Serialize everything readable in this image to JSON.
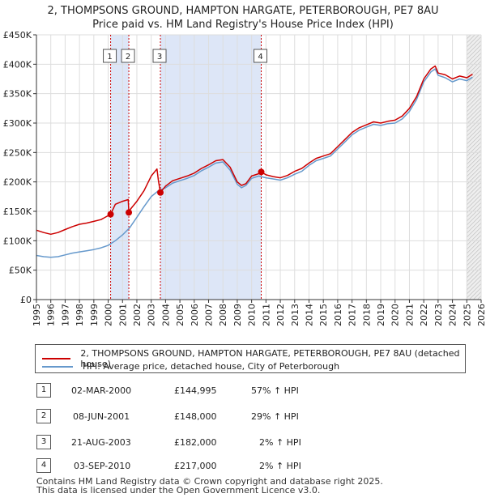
{
  "title": {
    "line1": "2, THOMPSONS GROUND, HAMPTON HARGATE, PETERBOROUGH, PE7 8AU",
    "line2": "Price paid vs. HM Land Registry's House Price Index (HPI)"
  },
  "colors": {
    "price": "#cc0000",
    "hpi": "#6699cc",
    "shade": "#dde6f7",
    "grid": "#dddddd",
    "marker_line": "#cc0000"
  },
  "legend": {
    "price_label": "2, THOMPSONS GROUND, HAMPTON HARGATE, PETERBOROUGH, PE7 8AU (detached house)",
    "hpi_label": "HPI: Average price, detached house, City of Peterborough"
  },
  "transactions": [
    {
      "num": "1",
      "date": "02-MAR-2000",
      "price": "£144,995",
      "pct": "57% ↑ HPI",
      "year": 2000.17,
      "value": 144995
    },
    {
      "num": "2",
      "date": "08-JUN-2001",
      "price": "£148,000",
      "pct": "29% ↑ HPI",
      "year": 2001.44,
      "value": 148000
    },
    {
      "num": "3",
      "date": "21-AUG-2003",
      "price": "£182,000",
      "pct": "2% ↑ HPI",
      "year": 2003.64,
      "value": 182000
    },
    {
      "num": "4",
      "date": "03-SEP-2010",
      "price": "£217,000",
      "pct": "2% ↑ HPI",
      "year": 2010.67,
      "value": 217000
    }
  ],
  "footer": {
    "line1": "Contains HM Land Registry data © Crown copyright and database right 2025.",
    "line2": "This data is licensed under the Open Government Licence v3.0."
  },
  "chart_data": {
    "type": "line",
    "title": "2, THOMPSONS GROUND, HAMPTON HARGATE, PETERBOROUGH, PE7 8AU",
    "subtitle": "Price paid vs. HM Land Registry's House Price Index (HPI)",
    "xlabel": "",
    "ylabel": "",
    "xlim": [
      1995,
      2026
    ],
    "ylim": [
      0,
      450000
    ],
    "x_ticks": [
      "1995",
      "1996",
      "1997",
      "1998",
      "1999",
      "2000",
      "2001",
      "2002",
      "2003",
      "2004",
      "2005",
      "2006",
      "2007",
      "2008",
      "2009",
      "2010",
      "2011",
      "2012",
      "2013",
      "2014",
      "2015",
      "2016",
      "2017",
      "2018",
      "2019",
      "2020",
      "2021",
      "2022",
      "2023",
      "2024",
      "2025",
      "2026"
    ],
    "y_ticks": [
      {
        "value": 0,
        "label": "£0"
      },
      {
        "value": 50000,
        "label": "£50K"
      },
      {
        "value": 100000,
        "label": "£100K"
      },
      {
        "value": 150000,
        "label": "£150K"
      },
      {
        "value": 200000,
        "label": "£200K"
      },
      {
        "value": 250000,
        "label": "£250K"
      },
      {
        "value": 300000,
        "label": "£300K"
      },
      {
        "value": 350000,
        "label": "£350K"
      },
      {
        "value": 400000,
        "label": "£400K"
      },
      {
        "value": 450000,
        "label": "£450K"
      }
    ],
    "shaded_regions": [
      [
        2000.17,
        2001.44
      ],
      [
        2003.64,
        2010.67
      ]
    ],
    "forecast_start": 2025.0,
    "series": [
      {
        "name": "2, THOMPSONS GROUND, HAMPTON HARGATE, PETERBOROUGH, PE7 8AU (detached house)",
        "color": "#cc0000",
        "x": [
          1995.0,
          1995.5,
          1996.0,
          1996.5,
          1997.0,
          1997.5,
          1998.0,
          1998.5,
          1999.0,
          1999.5,
          2000.17,
          2000.5,
          2001.0,
          2001.4,
          2001.44,
          2001.5,
          2002.0,
          2002.5,
          2003.0,
          2003.4,
          2003.5,
          2003.64,
          2004.0,
          2004.5,
          2005.0,
          2005.5,
          2006.0,
          2006.5,
          2007.0,
          2007.5,
          2008.0,
          2008.5,
          2009.0,
          2009.3,
          2009.6,
          2010.0,
          2010.5,
          2010.67,
          2011.0,
          2011.5,
          2012.0,
          2012.5,
          2013.0,
          2013.5,
          2014.0,
          2014.5,
          2015.0,
          2015.5,
          2016.0,
          2016.5,
          2017.0,
          2017.5,
          2018.0,
          2018.5,
          2019.0,
          2019.5,
          2020.0,
          2020.5,
          2021.0,
          2021.5,
          2022.0,
          2022.5,
          2022.8,
          2023.0,
          2023.5,
          2024.0,
          2024.5,
          2025.0,
          2025.4
        ],
        "values": [
          118000,
          114000,
          111000,
          114000,
          119000,
          124000,
          128000,
          130000,
          133000,
          136000,
          144995,
          162000,
          167000,
          170000,
          148000,
          152000,
          167000,
          185000,
          210000,
          222000,
          203000,
          182000,
          193000,
          202000,
          206000,
          210000,
          215000,
          223000,
          229000,
          236000,
          238000,
          225000,
          200000,
          194000,
          197000,
          210000,
          214000,
          217000,
          212000,
          209000,
          207000,
          211000,
          218000,
          223000,
          232000,
          240000,
          244000,
          248000,
          260000,
          272000,
          284000,
          292000,
          297000,
          302000,
          300000,
          303000,
          305000,
          312000,
          325000,
          345000,
          375000,
          392000,
          397000,
          385000,
          382000,
          375000,
          380000,
          377000,
          383000
        ]
      },
      {
        "name": "HPI: Average price, detached house, City of Peterborough",
        "color": "#6699cc",
        "x": [
          1995.0,
          1995.5,
          1996.0,
          1996.5,
          1997.0,
          1997.5,
          1998.0,
          1998.5,
          1999.0,
          1999.5,
          2000.0,
          2000.5,
          2001.0,
          2001.5,
          2002.0,
          2002.5,
          2003.0,
          2003.5,
          2004.0,
          2004.5,
          2005.0,
          2005.5,
          2006.0,
          2006.5,
          2007.0,
          2007.5,
          2008.0,
          2008.5,
          2009.0,
          2009.3,
          2009.6,
          2010.0,
          2010.5,
          2011.0,
          2011.5,
          2012.0,
          2012.5,
          2013.0,
          2013.5,
          2014.0,
          2014.5,
          2015.0,
          2015.5,
          2016.0,
          2016.5,
          2017.0,
          2017.5,
          2018.0,
          2018.5,
          2019.0,
          2019.5,
          2020.0,
          2020.5,
          2021.0,
          2021.5,
          2022.0,
          2022.5,
          2022.8,
          2023.0,
          2023.5,
          2024.0,
          2024.5,
          2025.0,
          2025.4
        ],
        "values": [
          75000,
          73000,
          72000,
          73000,
          76000,
          79000,
          81000,
          83000,
          85000,
          88000,
          92000,
          100000,
          110000,
          122000,
          140000,
          158000,
          175000,
          185000,
          190000,
          198000,
          202000,
          206000,
          211000,
          219000,
          225000,
          232000,
          234000,
          220000,
          196000,
          190000,
          194000,
          206000,
          210000,
          207000,
          205000,
          203000,
          207000,
          213000,
          218000,
          228000,
          236000,
          240000,
          244000,
          256000,
          268000,
          280000,
          288000,
          293000,
          298000,
          296000,
          299000,
          300000,
          307000,
          320000,
          340000,
          370000,
          387000,
          392000,
          381000,
          377000,
          370000,
          375000,
          372000,
          378000
        ]
      }
    ]
  }
}
